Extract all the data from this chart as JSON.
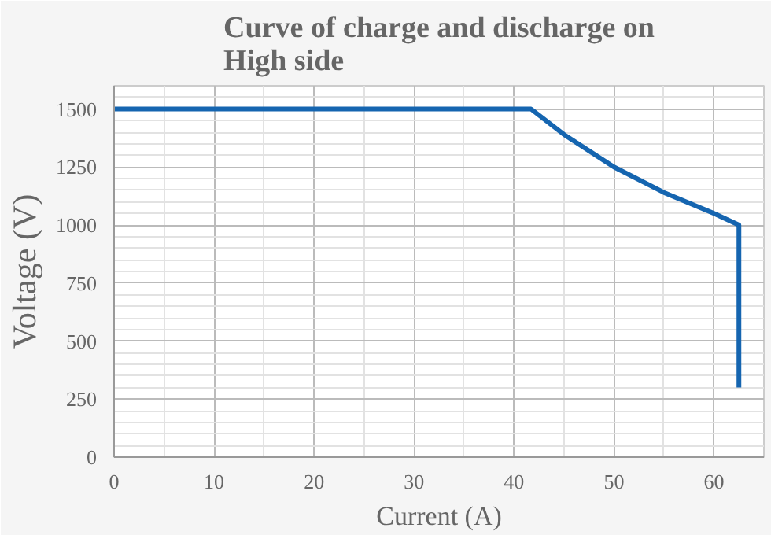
{
  "chart_data": {
    "type": "line",
    "title": "Curve of charge and discharge on\nHigh side",
    "xlabel": "Current (A)",
    "ylabel": "Voltage (V)",
    "x": [
      0,
      41.7,
      45,
      50,
      55,
      60,
      62.5,
      62.5
    ],
    "series": [
      {
        "color": "#1565b0",
        "values": [
          1500,
          1500,
          1390,
          1250,
          1140,
          1050,
          1000,
          300
        ]
      }
    ],
    "xlim": [
      0,
      65
    ],
    "ylim": [
      0,
      1600
    ],
    "xticks": [
      0,
      10,
      20,
      30,
      40,
      50,
      60
    ],
    "yticks": [
      0,
      250,
      500,
      750,
      1000,
      1250,
      1500
    ],
    "grid": true,
    "line_style": "solid"
  }
}
